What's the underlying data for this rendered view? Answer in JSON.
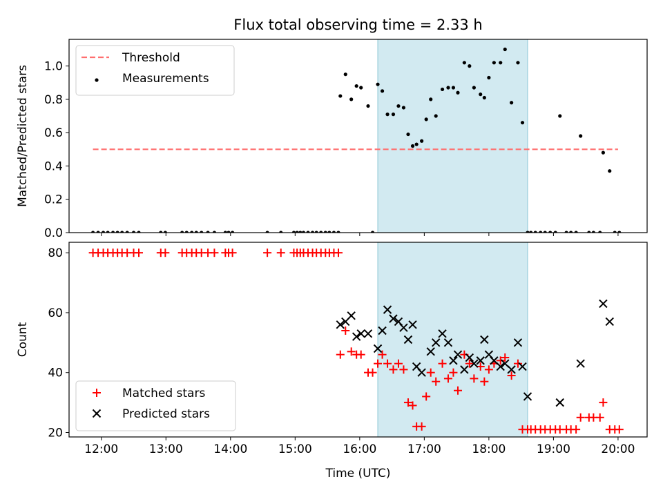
{
  "figure": {
    "title": "Flux total observing time = 2.33 h",
    "xlabel": "Time (UTC)"
  },
  "colors": {
    "highlight_band": "#add8e6",
    "threshold": "#ff6f6f",
    "measurements": "#000000",
    "matched": "#ff0000",
    "predicted": "#000000"
  },
  "chart_data": [
    {
      "type": "scatter",
      "panel": "top",
      "xlabel": "",
      "ylabel": "Matched/Predicted stars",
      "xlim": [
        11.5,
        20.45
      ],
      "ylim": [
        0,
        1.16
      ],
      "xticks": [
        12,
        13,
        14,
        15,
        16,
        17,
        18,
        19,
        20
      ],
      "xtick_labels": [],
      "yticks": [
        0.0,
        0.2,
        0.4,
        0.6,
        0.8,
        1.0
      ],
      "ytick_labels": [
        "0.0",
        "0.2",
        "0.4",
        "0.6",
        "0.8",
        "1.0"
      ],
      "highlight_span": [
        16.28,
        18.6
      ],
      "legend": {
        "position": "upper-left"
      },
      "series": [
        {
          "name": "Threshold",
          "style": "dashed-line",
          "x": [
            11.87,
            20.0
          ],
          "y": [
            0.5,
            0.5
          ]
        },
        {
          "name": "Measurements",
          "style": "dot",
          "x": [
            11.87,
            11.95,
            12.03,
            12.1,
            12.18,
            12.25,
            12.32,
            12.4,
            12.5,
            12.58,
            12.92,
            12.99,
            13.25,
            13.32,
            13.4,
            13.47,
            13.55,
            13.65,
            13.75,
            13.92,
            13.97,
            14.03,
            14.57,
            14.78,
            14.98,
            15.03,
            15.08,
            15.13,
            15.2,
            15.27,
            15.33,
            15.4,
            15.47,
            15.53,
            15.6,
            15.67,
            15.7,
            15.78,
            15.87,
            15.95,
            16.02,
            16.13,
            16.2,
            16.28,
            16.35,
            16.43,
            16.52,
            16.6,
            16.68,
            16.75,
            16.82,
            16.88,
            16.96,
            17.03,
            17.1,
            17.18,
            17.28,
            17.37,
            17.45,
            17.52,
            17.62,
            17.7,
            17.77,
            17.87,
            17.93,
            18.0,
            18.08,
            18.18,
            18.25,
            18.35,
            18.45,
            18.52,
            18.6,
            18.65,
            18.72,
            18.8,
            18.87,
            18.95,
            19.03,
            19.1,
            19.2,
            19.27,
            19.35,
            19.42,
            19.55,
            19.62,
            19.72,
            19.77,
            19.87,
            19.95,
            20.02
          ],
          "y": [
            0,
            0,
            0,
            0,
            0,
            0,
            0,
            0,
            0,
            0,
            0,
            0,
            0,
            0,
            0,
            0,
            0,
            0,
            0,
            0,
            0,
            0,
            0,
            0,
            0,
            0,
            0,
            0,
            0,
            0,
            0,
            0,
            0,
            0,
            0,
            0,
            0.82,
            0.95,
            0.8,
            0.88,
            0.87,
            0.76,
            0,
            0.89,
            0.85,
            0.71,
            0.71,
            0.76,
            0.75,
            0.59,
            0.52,
            0.53,
            0.55,
            0.68,
            0.8,
            0.7,
            0.86,
            0.87,
            0.87,
            0.84,
            1.02,
            1.0,
            0.87,
            0.83,
            0.81,
            0.93,
            1.02,
            1.02,
            1.1,
            0.78,
            1.02,
            0.66,
            0,
            0,
            0,
            0,
            0,
            0,
            0,
            0.7,
            0,
            0,
            0,
            0.58,
            0,
            0,
            0,
            0.48,
            0.37,
            0,
            0
          ]
        }
      ]
    },
    {
      "type": "scatter",
      "panel": "bottom",
      "xlabel": "Time (UTC)",
      "ylabel": "Count",
      "xlim": [
        11.5,
        20.45
      ],
      "ylim": [
        18.5,
        83.5
      ],
      "xticks": [
        12,
        13,
        14,
        15,
        16,
        17,
        18,
        19,
        20
      ],
      "xtick_labels": [
        "12:00",
        "13:00",
        "14:00",
        "15:00",
        "16:00",
        "17:00",
        "18:00",
        "19:00",
        "20:00"
      ],
      "yticks": [
        20,
        40,
        60,
        80
      ],
      "ytick_labels": [
        "20",
        "40",
        "60",
        "80"
      ],
      "highlight_span": [
        16.28,
        18.6
      ],
      "legend": {
        "position": "lower-left"
      },
      "series": [
        {
          "name": "Matched stars",
          "style": "plus",
          "x": [
            11.87,
            11.95,
            12.03,
            12.1,
            12.18,
            12.25,
            12.32,
            12.4,
            12.5,
            12.58,
            12.92,
            12.99,
            13.25,
            13.32,
            13.4,
            13.47,
            13.55,
            13.65,
            13.75,
            13.92,
            13.97,
            14.03,
            14.57,
            14.78,
            14.98,
            15.03,
            15.08,
            15.13,
            15.2,
            15.27,
            15.33,
            15.4,
            15.47,
            15.53,
            15.6,
            15.67,
            15.7,
            15.78,
            15.87,
            15.95,
            16.02,
            16.13,
            16.2,
            16.28,
            16.35,
            16.43,
            16.52,
            16.6,
            16.68,
            16.75,
            16.82,
            16.88,
            16.96,
            17.03,
            17.1,
            17.18,
            17.28,
            17.37,
            17.45,
            17.52,
            17.62,
            17.7,
            17.77,
            17.87,
            17.93,
            18.0,
            18.08,
            18.18,
            18.25,
            18.35,
            18.45,
            18.52,
            18.6,
            18.65,
            18.72,
            18.8,
            18.87,
            18.95,
            19.03,
            19.1,
            19.2,
            19.27,
            19.35,
            19.42,
            19.55,
            19.62,
            19.72,
            19.77,
            19.87,
            19.95,
            20.02
          ],
          "y": [
            80,
            80,
            80,
            80,
            80,
            80,
            80,
            80,
            80,
            80,
            80,
            80,
            80,
            80,
            80,
            80,
            80,
            80,
            80,
            80,
            80,
            80,
            80,
            80,
            80,
            80,
            80,
            80,
            80,
            80,
            80,
            80,
            80,
            80,
            80,
            80,
            46,
            54,
            47,
            46,
            46,
            40,
            40,
            43,
            46,
            43,
            41,
            43,
            41,
            30,
            29,
            22,
            22,
            32,
            40,
            37,
            43,
            38,
            40,
            34,
            46,
            43,
            38,
            42,
            37,
            41,
            43,
            44,
            45,
            39,
            43,
            21,
            21,
            21,
            21,
            21,
            21,
            21,
            21,
            21,
            21,
            21,
            21,
            25,
            25,
            25,
            25,
            30,
            21,
            21,
            21
          ]
        },
        {
          "name": "Predicted stars",
          "style": "x",
          "x": [
            15.7,
            15.78,
            15.87,
            15.95,
            16.02,
            16.13,
            16.28,
            16.35,
            16.43,
            16.52,
            16.6,
            16.68,
            16.75,
            16.82,
            16.88,
            16.96,
            17.1,
            17.18,
            17.28,
            17.37,
            17.45,
            17.52,
            17.62,
            17.7,
            17.77,
            17.87,
            17.93,
            18.0,
            18.08,
            18.18,
            18.25,
            18.35,
            18.45,
            18.52,
            18.6,
            19.1,
            19.42,
            19.77,
            19.87
          ],
          "y": [
            56,
            57,
            59,
            52,
            53,
            53,
            48,
            54,
            61,
            58,
            57,
            55,
            51,
            56,
            42,
            40,
            47,
            50,
            53,
            50,
            44,
            46,
            41,
            45,
            43,
            44,
            51,
            46,
            44,
            42,
            43,
            41,
            50,
            42,
            32,
            30,
            43,
            63,
            57
          ]
        }
      ]
    }
  ]
}
